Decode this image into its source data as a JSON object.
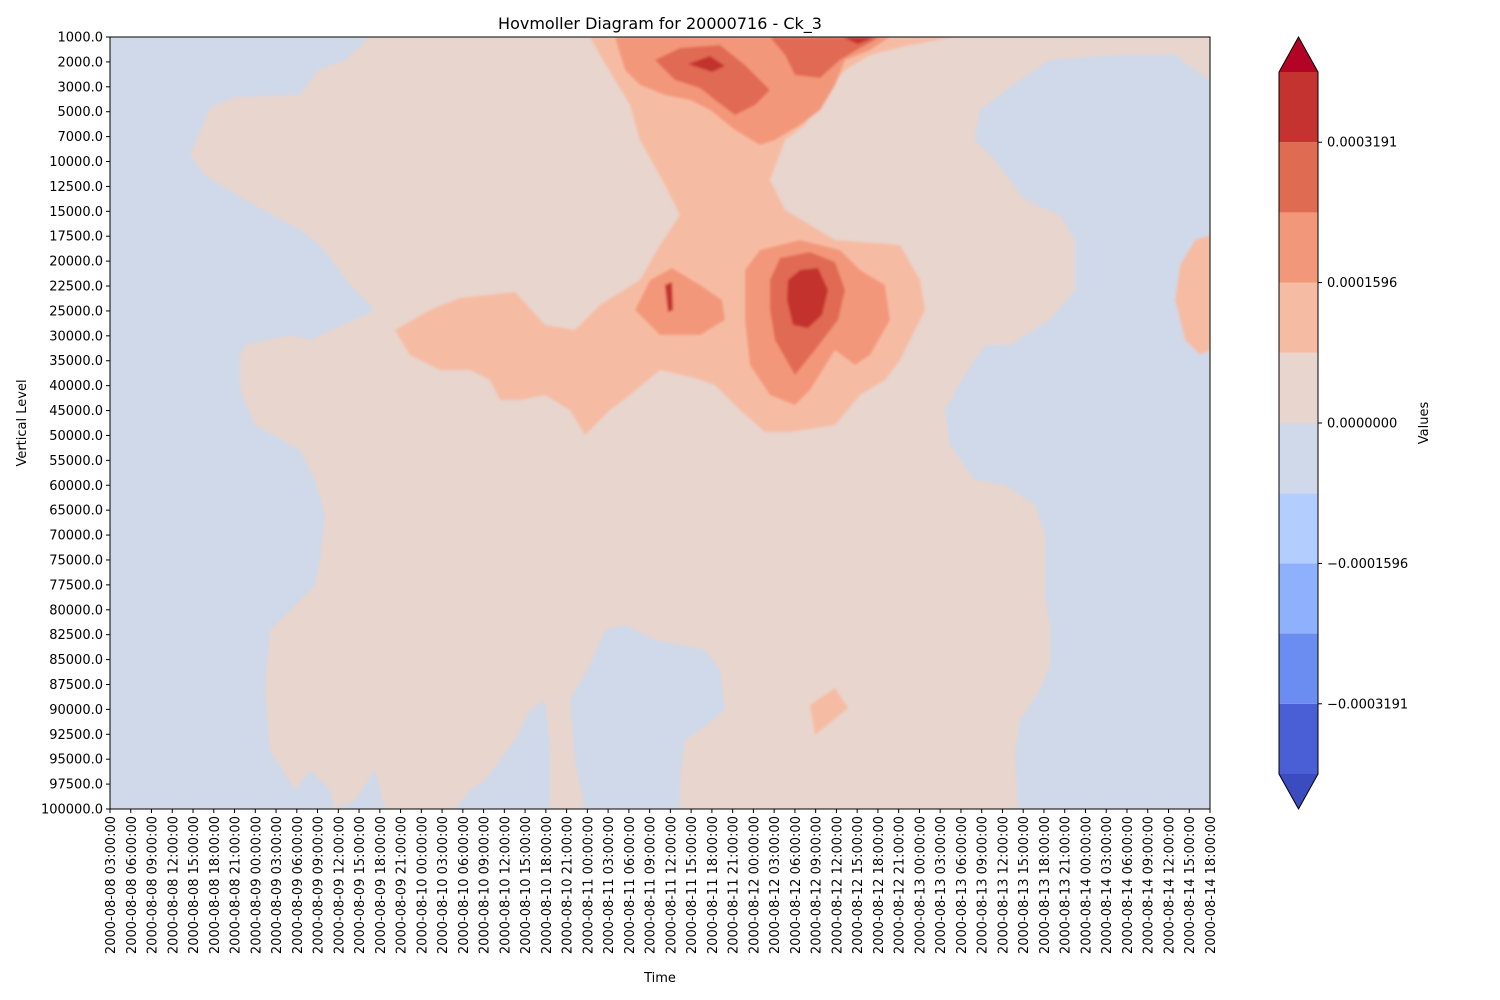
{
  "chart_data": {
    "type": "heatmap",
    "title": "Hovmoller Diagram for 20000716 - Ck_3",
    "xlabel": "Time",
    "ylabel": "Vertical Level",
    "grid": false,
    "colorbar": {
      "label": "Values",
      "tick_labels": [
        "0.0003191",
        "0.0001596",
        "0.0000000",
        "−0.0001596",
        "−0.0003191"
      ],
      "ticks": [
        0.0003191,
        0.0001596,
        0.0,
        -0.0001596,
        -0.0003191
      ],
      "levels": [
        -0.0003989,
        -0.0003191,
        -0.0002393,
        -0.0001596,
        -7.98e-05,
        0.0,
        7.98e-05,
        0.0001596,
        0.0002393,
        0.0003191,
        0.0003989
      ],
      "colors": [
        "#4a5fd6",
        "#6b8cf0",
        "#8eb0fd",
        "#b3cefe",
        "#cfd9e9",
        "#e8d5ce",
        "#f6bca3",
        "#f3977a",
        "#e06b53",
        "#c4332f"
      ],
      "under_color": "#3b4cc0",
      "over_color": "#b40426",
      "extend": "both"
    },
    "y_ticks": [
      "1000.0",
      "2000.0",
      "3000.0",
      "5000.0",
      "7000.0",
      "10000.0",
      "12500.0",
      "15000.0",
      "17500.0",
      "20000.0",
      "22500.0",
      "25000.0",
      "30000.0",
      "35000.0",
      "40000.0",
      "45000.0",
      "50000.0",
      "55000.0",
      "60000.0",
      "65000.0",
      "70000.0",
      "75000.0",
      "77500.0",
      "80000.0",
      "82500.0",
      "85000.0",
      "87500.0",
      "90000.0",
      "92500.0",
      "95000.0",
      "97500.0",
      "100000.0"
    ],
    "y_inverted": true,
    "x_ticks": [
      "2000-08-08 03:00:00",
      "2000-08-08 06:00:00",
      "2000-08-08 09:00:00",
      "2000-08-08 12:00:00",
      "2000-08-08 15:00:00",
      "2000-08-08 18:00:00",
      "2000-08-08 21:00:00",
      "2000-08-09 00:00:00",
      "2000-08-09 03:00:00",
      "2000-08-09 06:00:00",
      "2000-08-09 09:00:00",
      "2000-08-09 12:00:00",
      "2000-08-09 15:00:00",
      "2000-08-09 18:00:00",
      "2000-08-09 21:00:00",
      "2000-08-10 00:00:00",
      "2000-08-10 03:00:00",
      "2000-08-10 06:00:00",
      "2000-08-10 09:00:00",
      "2000-08-10 12:00:00",
      "2000-08-10 15:00:00",
      "2000-08-10 18:00:00",
      "2000-08-10 21:00:00",
      "2000-08-11 00:00:00",
      "2000-08-11 03:00:00",
      "2000-08-11 06:00:00",
      "2000-08-11 09:00:00",
      "2000-08-11 12:00:00",
      "2000-08-11 15:00:00",
      "2000-08-11 18:00:00",
      "2000-08-11 21:00:00",
      "2000-08-12 00:00:00",
      "2000-08-12 03:00:00",
      "2000-08-12 06:00:00",
      "2000-08-12 09:00:00",
      "2000-08-12 12:00:00",
      "2000-08-12 15:00:00",
      "2000-08-12 18:00:00",
      "2000-08-12 21:00:00",
      "2000-08-13 00:00:00",
      "2000-08-13 03:00:00",
      "2000-08-13 06:00:00",
      "2000-08-13 09:00:00",
      "2000-08-13 12:00:00",
      "2000-08-13 15:00:00",
      "2000-08-13 18:00:00",
      "2000-08-13 21:00:00",
      "2000-08-14 00:00:00",
      "2000-08-14 03:00:00",
      "2000-08-14 06:00:00",
      "2000-08-14 09:00:00",
      "2000-08-14 12:00:00",
      "2000-08-14 15:00:00",
      "2000-08-14 18:00:00"
    ],
    "x_range": [
      "2000-08-08 03:00:00",
      "2000-08-14 18:00:00"
    ],
    "features": [
      {
        "level_range": [
          -7.98e-05,
          0.0
        ],
        "region": "left side (08-08 03:00 to 08-09 12:00) at 1000–25000 and 30000–100000; right side (08-13 09:00 to 08-14 18:00) at 3000–100000; pocket 08-11 00:00 to 08-11 21:00 at 82500–100000; pocket 08-10 03:00 to 08-10 21:00 at 90000–100000"
      },
      {
        "level_range": [
          0.0,
          7.98e-05
        ],
        "region": "broad background across the central domain"
      },
      {
        "level_range": [
          7.98e-05,
          0.0001596
        ],
        "region": "band 08-09 21:00 to 08-12 21:00 at 20000–50000; column 08-11 09:00 to 08-12 15:00 at 1000–17500; small patch 08-12 09:00 at 90000–92500"
      },
      {
        "level_range": [
          0.0001596,
          0.0002393
        ],
        "region": "08-12 00:00 to 08-12 21:00 at 17500–45000; 08-11 09:00 to 08-12 15:00 at 1000–7000"
      },
      {
        "level_range": [
          0.0002393,
          0.0003191
        ],
        "region": "08-12 00:00 to 08-12 15:00 at 20000–40000; 08-11 09:00 to 08-12 12:00 at 1000–5000"
      },
      {
        "level_range": [
          0.0003191,
          0.0003989
        ],
        "region": "core near 08-12 06:00 to 08-12 09:00 at 20000–30000; core near 08-11 18:00 at 2000"
      }
    ]
  }
}
